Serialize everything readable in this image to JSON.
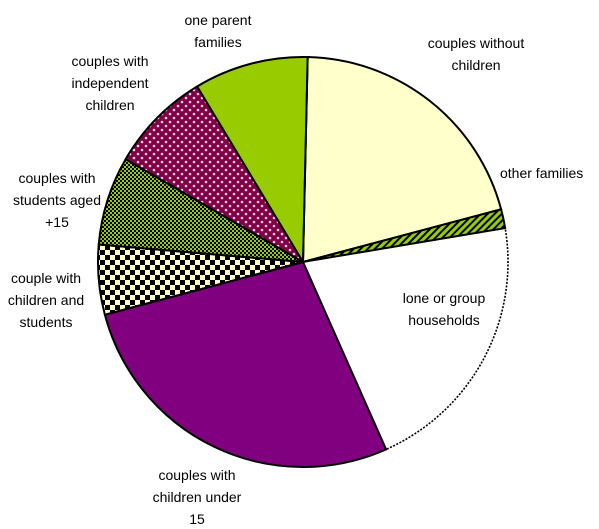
{
  "chart_data": {
    "type": "pie",
    "title": "",
    "unit": "%",
    "slices": [
      {
        "label": "couples without children",
        "value": 20.5,
        "color": "#ffffcc",
        "pattern": "solid",
        "label_lines": [
          "couples without",
          "children"
        ]
      },
      {
        "label": "other families",
        "value": 1.5,
        "color": "#99cc00",
        "pattern": "diagonal",
        "label_lines": [
          "other families"
        ]
      },
      {
        "label": "lone or group households",
        "value": 21.0,
        "color": "#ffffff",
        "pattern": "dotted-edge",
        "label_lines": [
          "lone or group",
          "households"
        ]
      },
      {
        "label": "couples with children under 15",
        "value": 27.5,
        "color": "#800080",
        "pattern": "solid",
        "label_lines": [
          "couples with",
          "children under",
          "15"
        ]
      },
      {
        "label": "couple with children and students",
        "value": 5.5,
        "color": "#000000",
        "pattern": "checker",
        "label_lines": [
          "couple with",
          "children and",
          "students"
        ]
      },
      {
        "label": "couples with students aged +15",
        "value": 7.0,
        "color": "#99cc00",
        "pattern": "fine-checker",
        "label_lines": [
          "couples with",
          "students aged",
          "+15"
        ]
      },
      {
        "label": "couples with independent children",
        "value": 8.0,
        "color": "#800040",
        "pattern": "dots",
        "label_lines": [
          "couples with",
          "independent",
          "children"
        ]
      },
      {
        "label": "one parent families",
        "value": 9.0,
        "color": "#99cc00",
        "pattern": "solid",
        "label_lines": [
          "one parent",
          "families"
        ]
      }
    ]
  }
}
